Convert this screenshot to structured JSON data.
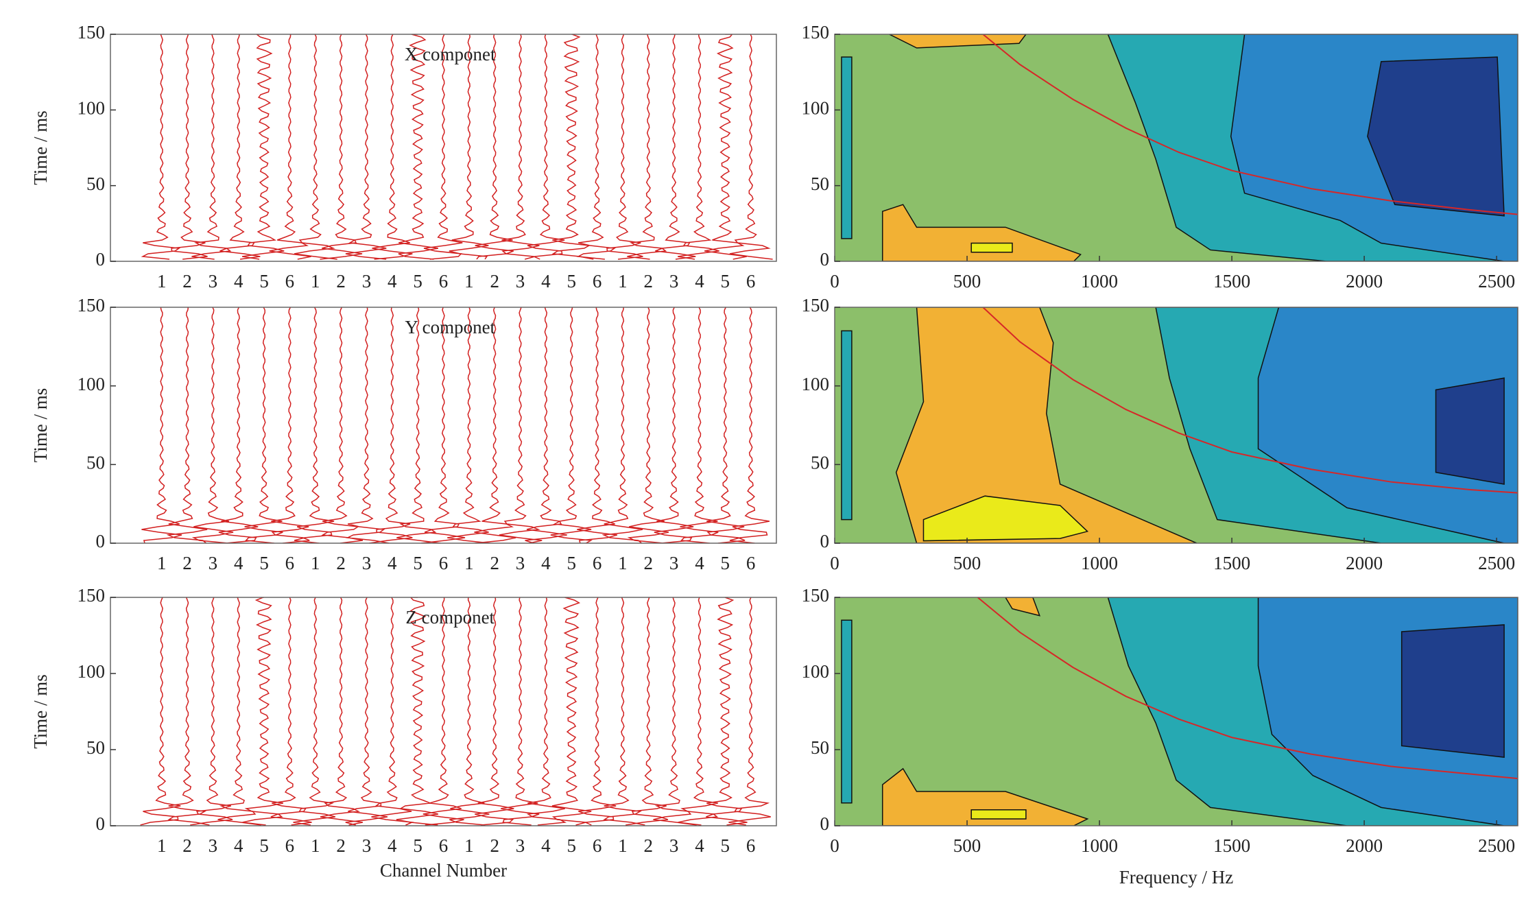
{
  "chart_data": [
    {
      "type": "traces",
      "title": "X componet",
      "ylabel": "Time / ms",
      "categories": [
        "1",
        "2",
        "3",
        "4",
        "5",
        "6",
        "1",
        "2",
        "3",
        "4",
        "5",
        "6",
        "1",
        "2",
        "3",
        "4",
        "5",
        "6",
        "1",
        "2",
        "3",
        "4",
        "5",
        "6"
      ],
      "ylim": [
        0,
        150
      ],
      "yticks": [
        0,
        50,
        100,
        150
      ],
      "color": "#d21f1f"
    },
    {
      "type": "contour",
      "xlim": [
        0,
        2580
      ],
      "xticks": [
        0,
        500,
        1000,
        1500,
        2000,
        2500
      ],
      "ylim": [
        0,
        150
      ],
      "yticks": [
        0,
        50,
        100,
        150
      ],
      "series": [
        {
          "color": "#d62728",
          "x": [
            560,
            700,
            900,
            1100,
            1300,
            1500,
            1800,
            2100,
            2400,
            2580
          ],
          "values": [
            150,
            130,
            107,
            88,
            72,
            60,
            48,
            40,
            34,
            31
          ]
        }
      ]
    },
    {
      "type": "traces",
      "title": "Y componet",
      "ylabel": "Time / ms",
      "categories": [
        "1",
        "2",
        "3",
        "4",
        "5",
        "6",
        "1",
        "2",
        "3",
        "4",
        "5",
        "6",
        "1",
        "2",
        "3",
        "4",
        "5",
        "6",
        "1",
        "2",
        "3",
        "4",
        "5",
        "6"
      ],
      "ylim": [
        0,
        150
      ],
      "yticks": [
        0,
        50,
        100,
        150
      ],
      "color": "#d21f1f"
    },
    {
      "type": "contour",
      "xlim": [
        0,
        2580
      ],
      "xticks": [
        0,
        500,
        1000,
        1500,
        2000,
        2500
      ],
      "ylim": [
        0,
        150
      ],
      "yticks": [
        0,
        50,
        100,
        150
      ],
      "series": [
        {
          "color": "#d62728",
          "x": [
            560,
            700,
            900,
            1100,
            1300,
            1500,
            1800,
            2100,
            2400,
            2580
          ],
          "values": [
            150,
            128,
            104,
            85,
            70,
            58,
            47,
            39,
            34,
            32
          ]
        }
      ]
    },
    {
      "type": "traces",
      "title": "Z componet",
      "ylabel": "Time / ms",
      "xlabel": "Channel Number",
      "categories": [
        "1",
        "2",
        "3",
        "4",
        "5",
        "6",
        "1",
        "2",
        "3",
        "4",
        "5",
        "6",
        "1",
        "2",
        "3",
        "4",
        "5",
        "6",
        "1",
        "2",
        "3",
        "4",
        "5",
        "6"
      ],
      "ylim": [
        0,
        150
      ],
      "yticks": [
        0,
        50,
        100,
        150
      ],
      "color": "#d21f1f"
    },
    {
      "type": "contour",
      "xlabel": "Frequency / Hz",
      "xlim": [
        0,
        2580
      ],
      "xticks": [
        0,
        500,
        1000,
        1500,
        2000,
        2500
      ],
      "ylim": [
        0,
        150
      ],
      "yticks": [
        0,
        50,
        100,
        150
      ],
      "series": [
        {
          "color": "#d62728",
          "x": [
            540,
            700,
            900,
            1100,
            1300,
            1500,
            1800,
            2100,
            2400,
            2580
          ],
          "values": [
            150,
            127,
            104,
            85,
            70,
            58,
            47,
            39,
            34,
            31
          ]
        }
      ]
    }
  ]
}
